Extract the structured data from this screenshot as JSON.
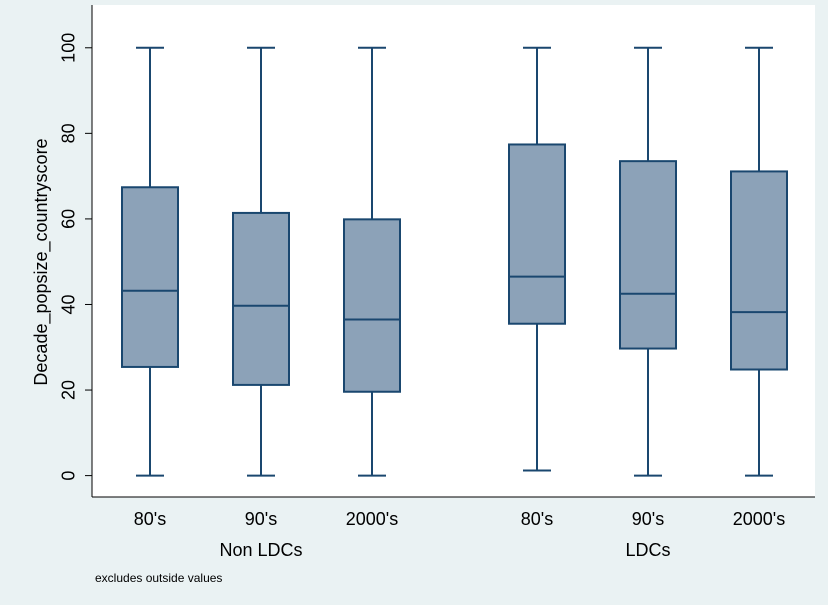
{
  "chart_data": {
    "type": "box",
    "ylabel": "Decade_popsize_countryscore",
    "note": "excludes outside values",
    "ylim": [
      -5,
      110
    ],
    "yticks": [
      0,
      20,
      40,
      60,
      80,
      100
    ],
    "box_color": "#8ca2b8",
    "line_color": "#1a476f",
    "groups": [
      {
        "label": "Non LDCs",
        "boxes": [
          {
            "category": "80's",
            "min": 0,
            "q1": 25.4,
            "median": 43.2,
            "q3": 67.4,
            "max": 100
          },
          {
            "category": "90's",
            "min": 0,
            "q1": 21.2,
            "median": 39.7,
            "q3": 61.4,
            "max": 100
          },
          {
            "category": "2000's",
            "min": 0,
            "q1": 19.6,
            "median": 36.5,
            "q3": 59.9,
            "max": 100
          }
        ]
      },
      {
        "label": "LDCs",
        "boxes": [
          {
            "category": "80's",
            "min": 1.2,
            "q1": 35.5,
            "median": 46.5,
            "q3": 77.4,
            "max": 100
          },
          {
            "category": "90's",
            "min": 0,
            "q1": 29.7,
            "median": 42.5,
            "q3": 73.5,
            "max": 100
          },
          {
            "category": "2000's",
            "min": 0,
            "q1": 24.8,
            "median": 38.2,
            "q3": 71.1,
            "max": 100
          }
        ]
      }
    ]
  }
}
